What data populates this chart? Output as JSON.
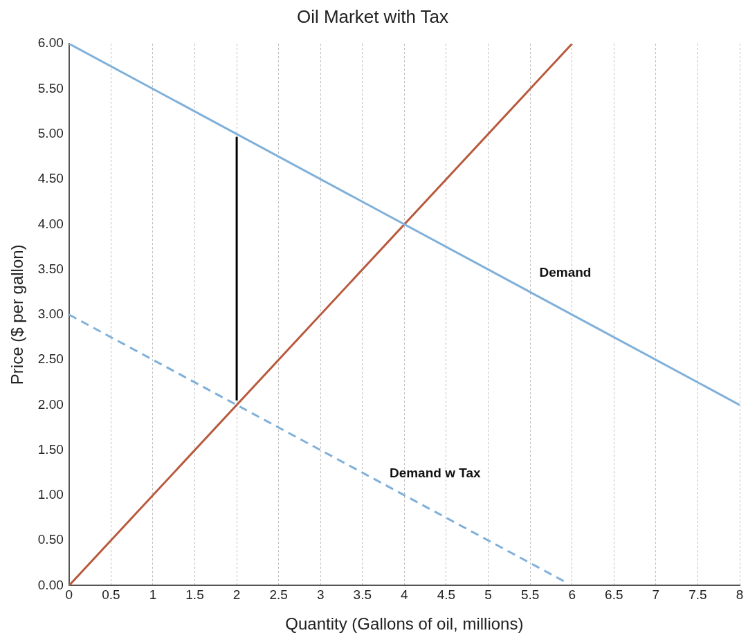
{
  "chart_data": {
    "type": "line",
    "title": "Oil Market with Tax",
    "xlabel": "Quantity (Gallons of oil, millions)",
    "ylabel": "Price ($ per gallon)",
    "series": [
      {
        "name": "Demand",
        "color": "#7fb0da",
        "x": [
          0,
          8
        ],
        "values": [
          6,
          2
        ]
      },
      {
        "name": "Demand w Tax",
        "color": "#7fb0da",
        "x": [
          0,
          5.9
        ],
        "values": [
          3,
          0.05
        ],
        "line_style": "dashed"
      },
      {
        "color": "#b85a3e",
        "x": [
          0,
          6
        ],
        "values": [
          0,
          6
        ]
      },
      {
        "color": "#000000",
        "x": [
          2,
          2
        ],
        "values": [
          2.05,
          4.97
        ]
      }
    ],
    "xlim": [
      0,
      8
    ],
    "xticks": [
      0,
      0.5,
      1,
      1.5,
      2,
      2.5,
      3,
      3.5,
      4,
      4.5,
      5,
      5.5,
      6,
      6.5,
      7,
      7.5,
      8
    ],
    "ylim": [
      0,
      6
    ],
    "yticks": [
      {
        "value": 0,
        "label": "0.00"
      },
      {
        "value": 0.5,
        "label": "0.50"
      },
      {
        "value": 1,
        "label": "1.00"
      },
      {
        "value": 1.5,
        "label": "1.50"
      },
      {
        "value": 2,
        "label": "2.00"
      },
      {
        "value": 2.5,
        "label": "2.50"
      },
      {
        "value": 3,
        "label": "3.00"
      },
      {
        "value": 3.5,
        "label": "3.50"
      },
      {
        "value": 4,
        "label": "4.00"
      },
      {
        "value": 4.5,
        "label": "4.50"
      },
      {
        "value": 5,
        "label": "5.00"
      },
      {
        "value": 5.5,
        "label": "5.50"
      },
      {
        "value": 6,
        "label": "6.00"
      }
    ],
    "grid": "x",
    "marker": "none",
    "line_style": "solid"
  }
}
